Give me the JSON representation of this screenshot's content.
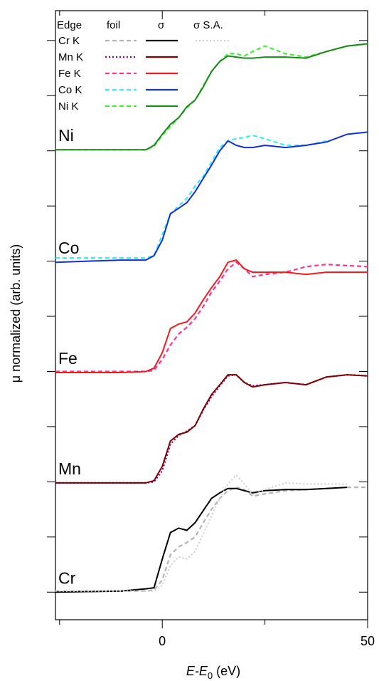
{
  "chart_data": {
    "type": "line",
    "ylabel": "μ normalized (arb. units)",
    "xlabel": [
      "E",
      "-E",
      "0",
      " (eV)"
    ],
    "xlim": [
      -26,
      50
    ],
    "xticks": [
      0,
      50
    ],
    "xminorticks": [
      -25,
      25
    ],
    "ylim": [
      -0.25,
      5.27
    ],
    "yticks": [
      0,
      0.5,
      1,
      1.5,
      2,
      2.5,
      3,
      3.5,
      4,
      4.5,
      5
    ],
    "ytick_labels": false,
    "legend_header": [
      "Edge",
      "foil",
      "σ",
      "σ S.A."
    ],
    "x": [
      -26,
      -10,
      -4,
      -2,
      0,
      2,
      4,
      6,
      8,
      10,
      12,
      14,
      16,
      18,
      20,
      22,
      25,
      30,
      35,
      40,
      45,
      50
    ],
    "edges": [
      {
        "name": "Cr K",
        "label": "Cr",
        "foil": {
          "color": "#b4b4b4",
          "dash": "dashed",
          "values": [
            0.01,
            0.01,
            0.01,
            0.02,
            0.11,
            0.34,
            0.41,
            0.45,
            0.5,
            0.63,
            0.75,
            0.85,
            0.92,
            0.95,
            0.93,
            0.87,
            0.89,
            0.92,
            0.93,
            0.94,
            0.95,
            0.95
          ]
        },
        "sigma": {
          "color": "#000000",
          "dash": "solid",
          "values": [
            0,
            0.01,
            0.03,
            0.04,
            0.3,
            0.54,
            0.58,
            0.56,
            0.63,
            0.74,
            0.85,
            0.9,
            0.94,
            0.94,
            0.92,
            0.9,
            0.92,
            0.93,
            0.93,
            0.94,
            0.95,
            null
          ]
        },
        "sa": {
          "color": "#cfcfcf",
          "dash": "dotted",
          "values": [
            0.01,
            0.01,
            0.01,
            0.01,
            0.06,
            0.24,
            0.32,
            0.3,
            0.37,
            0.53,
            0.69,
            0.85,
            0.98,
            1.06,
            0.98,
            0.88,
            0.93,
            0.99,
            0.98,
            0.98,
            0.98,
            null
          ]
        }
      },
      {
        "name": "Mn K",
        "label": "Mn",
        "foil": {
          "color": "#800080",
          "dash": "dotted",
          "values": [
            0.99,
            0.99,
            0.99,
            1.0,
            1.1,
            1.34,
            1.42,
            1.46,
            1.51,
            1.65,
            1.77,
            1.87,
            1.96,
            1.97,
            1.9,
            1.87,
            1.88,
            1.9,
            1.88,
            1.95,
            1.97,
            1.96
          ]
        },
        "sigma": {
          "color": "#800000",
          "dash": "solid",
          "values": [
            0.99,
            0.99,
            0.99,
            1.01,
            1.14,
            1.37,
            1.43,
            1.45,
            1.51,
            1.66,
            1.79,
            1.88,
            1.97,
            1.97,
            1.9,
            1.86,
            1.88,
            1.9,
            1.88,
            1.95,
            1.97,
            1.96
          ]
        }
      },
      {
        "name": "Fe K",
        "label": "Fe",
        "foil": {
          "color": "#ff3399",
          "dash": "dashed",
          "values": [
            2.0,
            2.0,
            2.0,
            2.01,
            2.11,
            2.24,
            2.34,
            2.4,
            2.48,
            2.59,
            2.72,
            2.82,
            2.93,
            2.99,
            2.93,
            2.86,
            2.88,
            2.9,
            2.95,
            2.97,
            2.96,
            2.95
          ]
        },
        "sigma": {
          "color": "#ee1c1c",
          "dash": "solid",
          "values": [
            1.99,
            1.99,
            2.0,
            2.03,
            2.17,
            2.39,
            2.43,
            2.45,
            2.53,
            2.65,
            2.76,
            2.86,
            2.99,
            3.01,
            2.93,
            2.9,
            2.9,
            2.9,
            2.88,
            2.9,
            2.9,
            2.9
          ]
        }
      },
      {
        "name": "Co K",
        "label": "Co",
        "foil": {
          "color": "#33eeff",
          "dash": "dashed",
          "values": [
            3.03,
            3.03,
            3.03,
            3.05,
            3.24,
            3.43,
            3.5,
            3.57,
            3.68,
            3.77,
            3.9,
            4.03,
            4.09,
            4.11,
            4.12,
            4.14,
            4.11,
            4.05,
            4.05,
            4.09,
            null,
            null
          ]
        },
        "sigma": {
          "color": "#1030d8",
          "dash": "solid",
          "values": [
            2.99,
            3.01,
            3.01,
            3.05,
            3.19,
            3.43,
            3.48,
            3.53,
            3.63,
            3.75,
            3.87,
            4.0,
            4.09,
            4.05,
            4.03,
            4.03,
            4.05,
            4.03,
            4.05,
            4.08,
            4.15,
            4.17
          ]
        }
      },
      {
        "name": "Ni K",
        "label": "Ni",
        "foil": {
          "color": "#44ee33",
          "dash": "dashed",
          "values": [
            4.01,
            4.01,
            4.01,
            4.04,
            4.14,
            4.22,
            4.3,
            4.39,
            4.46,
            4.59,
            4.72,
            4.81,
            4.88,
            4.88,
            4.86,
            4.9,
            4.95,
            4.88,
            4.85,
            4.9,
            4.95,
            4.97
          ]
        },
        "sigma": {
          "color": "#1a8a1a",
          "dash": "solid",
          "values": [
            4.01,
            4.01,
            4.01,
            4.05,
            4.15,
            4.24,
            4.3,
            4.4,
            4.46,
            4.58,
            4.72,
            4.81,
            4.86,
            4.85,
            4.84,
            4.84,
            4.85,
            4.85,
            4.84,
            4.9,
            4.95,
            4.97
          ]
        }
      }
    ]
  }
}
